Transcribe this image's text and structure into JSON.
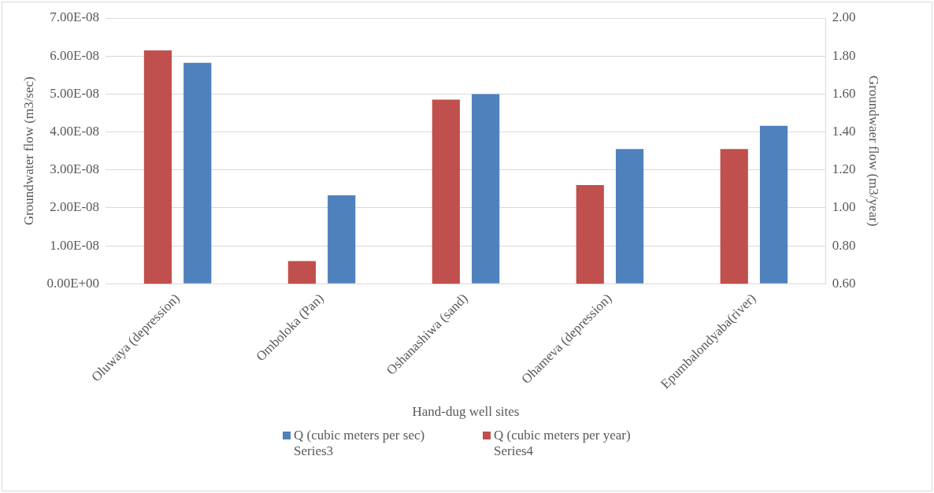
{
  "chart_data": {
    "type": "bar",
    "xlabel": "Hand-dug well sites",
    "ylabel": "Groundwater flow (m3/sec)",
    "y2label": "Groundwaer flow (m3/year)",
    "categories": [
      "Oluwaya (depression)",
      "Omboloka (Pan)",
      "Oshanashiwa (sand)",
      "Ohameva (depression)",
      "Epumbalondyaba(river)"
    ],
    "series": [
      {
        "name": "Q (cubic meters per sec) Series3",
        "color": "#4f81bd",
        "values": [
          5.82e-08,
          2.33e-08,
          5e-08,
          3.55e-08,
          4.16e-08
        ]
      },
      {
        "name": "Q (cubic meters per year) Series4",
        "color": "#c0504d",
        "axis": "y2",
        "values": [
          1.83,
          0.72,
          1.57,
          1.12,
          1.31
        ]
      }
    ],
    "ylim": [
      0,
      7e-08
    ],
    "yticks": [
      {
        "value": 0,
        "label": "0.00E+00"
      },
      {
        "value": 1e-08,
        "label": "1.00E-08"
      },
      {
        "value": 2e-08,
        "label": "2.00E-08"
      },
      {
        "value": 3e-08,
        "label": "3.00E-08"
      },
      {
        "value": 4e-08,
        "label": "4.00E-08"
      },
      {
        "value": 5e-08,
        "label": "5.00E-08"
      },
      {
        "value": 6e-08,
        "label": "6.00E-08"
      },
      {
        "value": 7e-08,
        "label": "7.00E-08"
      }
    ],
    "y2lim": [
      0.6,
      2.0
    ],
    "y2ticks": [
      {
        "value": 0.6,
        "label": "0.60"
      },
      {
        "value": 0.8,
        "label": "0.80"
      },
      {
        "value": 1.0,
        "label": "1.00"
      },
      {
        "value": 1.2,
        "label": "1.20"
      },
      {
        "value": 1.4,
        "label": "1.40"
      },
      {
        "value": 1.6,
        "label": "1.60"
      },
      {
        "value": 1.8,
        "label": "1.80"
      },
      {
        "value": 2.0,
        "label": "2.00"
      }
    ],
    "grid": "y",
    "legend": "bottom"
  }
}
